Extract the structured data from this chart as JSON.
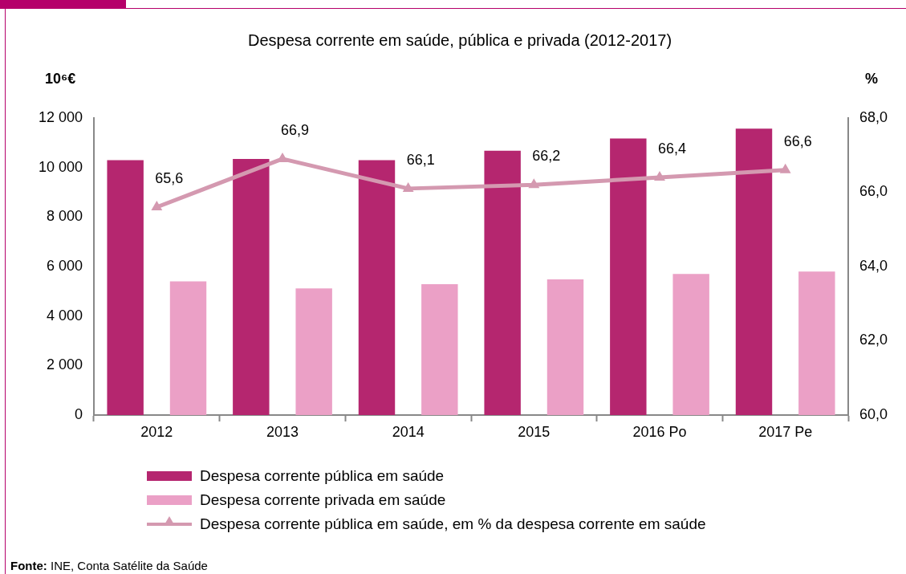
{
  "chart_data": {
    "type": "bar",
    "title": "Despesa corrente em saúde, pública e privada (2012-2017)",
    "ylabel": "10⁶€",
    "y2label": "%",
    "categories": [
      "2012",
      "2013",
      "2014",
      "2015",
      "2016 Po",
      "2017 Pe"
    ],
    "series": [
      {
        "name": "Despesa corrente pública em saúde",
        "color": "#b5266f",
        "values": [
          10300,
          10350,
          10300,
          10680,
          11170,
          11570
        ]
      },
      {
        "name": "Despesa corrente privada em saúde",
        "color": "#eba0c6",
        "values": [
          5400,
          5120,
          5290,
          5480,
          5700,
          5800
        ]
      },
      {
        "name": "Despesa corrente pública em saúde, em % da despesa corrente em saúde",
        "type": "line",
        "axis": "y2",
        "color": "#d499b0",
        "marker": "triangle",
        "values": [
          65.6,
          66.9,
          66.1,
          66.2,
          66.4,
          66.6
        ],
        "value_labels": [
          "65,6",
          "66,9",
          "66,1",
          "66,2",
          "66,4",
          "66,6"
        ]
      }
    ],
    "ylim": [
      0,
      12000
    ],
    "yticks": [
      {
        "value": 0,
        "label": "0"
      },
      {
        "value": 2000,
        "label": "2 000"
      },
      {
        "value": 4000,
        "label": "4 000"
      },
      {
        "value": 6000,
        "label": "6 000"
      },
      {
        "value": 8000,
        "label": "8 000"
      },
      {
        "value": 10000,
        "label": "10 000"
      },
      {
        "value": 12000,
        "label": "12 000"
      }
    ],
    "y2lim": [
      60,
      68
    ],
    "y2ticks": [
      {
        "value": 60,
        "label": "60,0"
      },
      {
        "value": 62,
        "label": "62,0"
      },
      {
        "value": 64,
        "label": "64,0"
      },
      {
        "value": 66,
        "label": "66,0"
      },
      {
        "value": 68,
        "label": "68,0"
      }
    ],
    "legend": "bottom",
    "annotations": [
      "Fonte: INE, Conta Satélite da Saúde"
    ]
  }
}
